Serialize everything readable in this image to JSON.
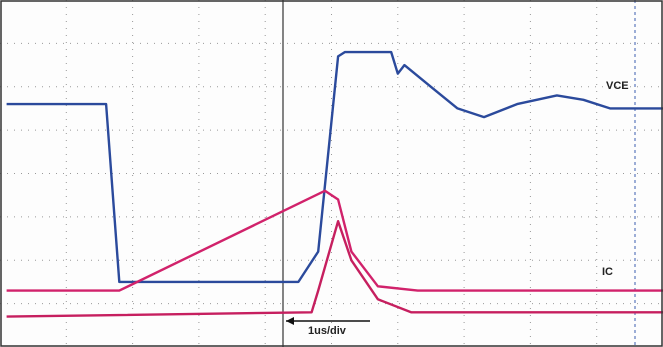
{
  "chart_data": {
    "type": "line",
    "annotations": [
      "VCE",
      "IC",
      "1us/div"
    ],
    "xlim": [
      0,
      10
    ],
    "ylim": [
      0,
      8
    ],
    "series": [
      {
        "name": "VCE",
        "color": "#2b4a9c",
        "x": [
          0.1,
          1.6,
          1.8,
          4.5,
          4.8,
          5.1,
          5.2,
          5.9,
          6.0,
          6.1,
          6.5,
          6.9,
          7.3,
          7.8,
          8.4,
          8.8,
          9.2,
          10.0
        ],
        "values": [
          5.6,
          5.6,
          1.5,
          1.5,
          2.2,
          6.7,
          6.8,
          6.8,
          6.3,
          6.5,
          6.0,
          5.5,
          5.3,
          5.6,
          5.8,
          5.7,
          5.5,
          5.5
        ]
      },
      {
        "name": "IC",
        "color": "#d1226b",
        "x": [
          0.1,
          1.8,
          4.9,
          5.1,
          5.3,
          5.7,
          6.3,
          10.0
        ],
        "values": [
          1.3,
          1.3,
          3.6,
          3.4,
          2.2,
          1.4,
          1.3,
          1.3
        ]
      },
      {
        "color": "#c61f5f",
        "x": [
          0.1,
          4.7,
          4.8,
          5.1,
          5.3,
          5.7,
          6.2,
          10.0
        ],
        "values": [
          0.7,
          0.8,
          1.3,
          2.9,
          2.0,
          1.1,
          0.8,
          0.8
        ]
      }
    ]
  }
}
